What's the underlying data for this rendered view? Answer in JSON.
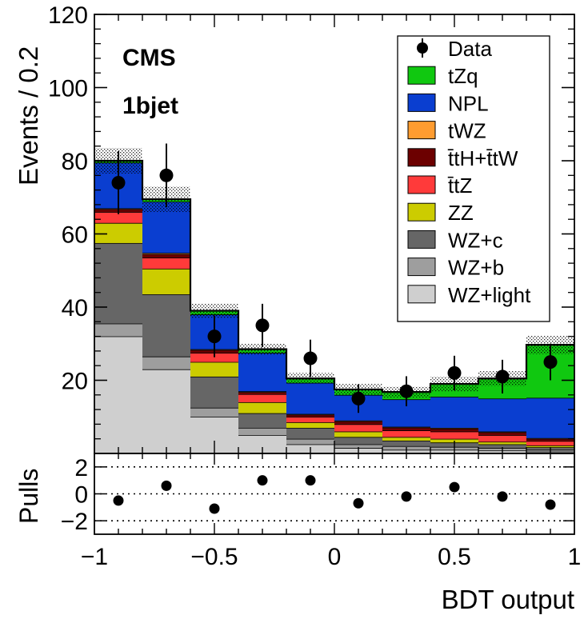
{
  "chart_data": {
    "type": "stacked-bar-histogram",
    "experiment_label": "CMS",
    "category_label": "1bjet",
    "ylabel": "Events / 0.2",
    "xlabel": "BDT output",
    "ylim": [
      0,
      120
    ],
    "yticks": [
      20,
      40,
      60,
      80,
      100,
      120
    ],
    "xlim": [
      -1,
      1
    ],
    "xticks": [
      -1,
      -0.5,
      0,
      0.5,
      1
    ],
    "xtick_labels": [
      "−1",
      "−0.5",
      "0",
      "0.5",
      "1"
    ],
    "bin_edges": [
      -1.0,
      -0.8,
      -0.6,
      -0.4,
      -0.2,
      0.0,
      0.2,
      0.4,
      0.6,
      0.8,
      1.0
    ],
    "legend": [
      "Data",
      "tZq",
      "NPL",
      "tWZ",
      "t̄tH+t̄tW",
      "t̄tZ",
      "ZZ",
      "WZ+c",
      "WZ+b",
      "WZ+light"
    ],
    "legend_entries": [
      {
        "label": "Data",
        "type": "marker",
        "color": "#000000"
      },
      {
        "label": "tZq",
        "type": "fill",
        "color": "#10c810"
      },
      {
        "label": "NPL",
        "type": "fill",
        "color": "#0a3ed0"
      },
      {
        "label": "tWZ",
        "type": "fill",
        "color": "#ff9c30"
      },
      {
        "label": "ttH+ttW",
        "type": "fill",
        "color": "#6c0000"
      },
      {
        "label": "ttZ",
        "type": "fill",
        "color": "#ff3a3a"
      },
      {
        "label": "ZZ",
        "type": "fill",
        "color": "#cccc00"
      },
      {
        "label": "WZ+c",
        "type": "fill",
        "color": "#666666"
      },
      {
        "label": "WZ+b",
        "type": "fill",
        "color": "#9e9e9e"
      },
      {
        "label": "WZ+light",
        "type": "fill",
        "color": "#cfcfcf"
      }
    ],
    "series": [
      {
        "name": "WZ+light",
        "color": "#cfcfcf",
        "values": [
          32,
          23,
          10,
          5,
          2.5,
          1.5,
          1,
          1,
          0.8,
          0.5
        ]
      },
      {
        "name": "WZ+b",
        "color": "#9e9e9e",
        "values": [
          3.5,
          3.5,
          2.5,
          2,
          1.5,
          1,
          1,
          0.8,
          0.7,
          0.5
        ]
      },
      {
        "name": "WZ+c",
        "color": "#666666",
        "values": [
          22,
          17,
          8.5,
          4,
          3,
          2,
          1.5,
          1.2,
          1,
          0.7
        ]
      },
      {
        "name": "ZZ",
        "color": "#cccc00",
        "values": [
          5.5,
          7,
          4,
          3,
          1.5,
          1.5,
          1,
          1,
          0.7,
          0.5
        ]
      },
      {
        "name": "ttZ",
        "color": "#ff3a3a",
        "values": [
          3,
          3,
          2.5,
          2.2,
          1.5,
          2,
          1.8,
          2,
          1.8,
          1.2
        ]
      },
      {
        "name": "ttH+ttW",
        "color": "#6c0000",
        "values": [
          0.8,
          1,
          0.8,
          0.6,
          0.6,
          0.8,
          0.8,
          0.8,
          0.8,
          0.6
        ]
      },
      {
        "name": "tWZ",
        "color": "#ff9c30",
        "values": [
          0.2,
          0.3,
          0.2,
          0.2,
          0.2,
          0.2,
          0.2,
          0.2,
          0.2,
          0.2
        ]
      },
      {
        "name": "NPL",
        "color": "#0a3ed0",
        "values": [
          12.5,
          14,
          9.5,
          10.5,
          8.5,
          7,
          7.5,
          8.5,
          9,
          11
        ]
      },
      {
        "name": "tZq",
        "color": "#10c810",
        "values": [
          0.5,
          0.7,
          1,
          1,
          1.2,
          1.5,
          2,
          3.5,
          5.5,
          14.5
        ]
      }
    ],
    "uncertainty_band": {
      "style": "hatched",
      "values": [
        3.5,
        3.5,
        2,
        1.5,
        1.5,
        1.5,
        1.5,
        2,
        2,
        2.5
      ]
    },
    "data": {
      "x": [
        -0.9,
        -0.7,
        -0.5,
        -0.3,
        -0.1,
        0.1,
        0.3,
        0.5,
        0.7,
        0.9
      ],
      "y": [
        74,
        76,
        32,
        35,
        26,
        15,
        17,
        22,
        21,
        25
      ],
      "yerr": [
        8.6,
        8.7,
        5.7,
        5.9,
        5.1,
        3.9,
        4.1,
        4.7,
        4.6,
        5.0
      ]
    },
    "pulls": {
      "ylabel": "Pulls",
      "ylim": [
        -3,
        3
      ],
      "yticks": [
        -2,
        0,
        2
      ],
      "ytick_labels": [
        "−2",
        "0",
        "2"
      ],
      "reference_lines": [
        -2,
        0,
        2
      ],
      "values": [
        -0.5,
        0.6,
        -1.1,
        1.0,
        1.0,
        -0.7,
        -0.2,
        0.5,
        -0.2,
        -0.8
      ]
    }
  }
}
